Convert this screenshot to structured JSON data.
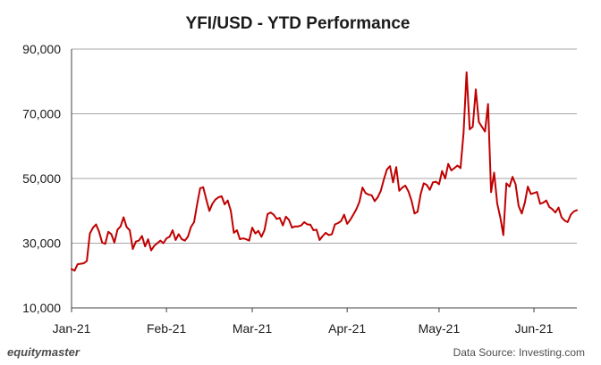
{
  "chart_data": {
    "type": "line",
    "title": "YFI/USD  - YTD Performance",
    "xlabel": "",
    "ylabel": "",
    "ylim": [
      10000,
      90000
    ],
    "y_ticks": [
      10000,
      30000,
      50000,
      70000,
      90000
    ],
    "y_tick_labels": [
      "10,000",
      "30,000",
      "50,000",
      "70,000",
      "90,000"
    ],
    "x_range": [
      "2021-01-01",
      "2021-06-15"
    ],
    "x_ticks": [
      {
        "date": "2021-01-01",
        "label": "Jan-21"
      },
      {
        "date": "2021-02-01",
        "label": "Feb-21"
      },
      {
        "date": "2021-03-01",
        "label": "Mar-21"
      },
      {
        "date": "2021-04-01",
        "label": "Apr-21"
      },
      {
        "date": "2021-05-01",
        "label": "May-21"
      },
      {
        "date": "2021-06-01",
        "label": "Jun-21"
      }
    ],
    "grid": true,
    "line_color": "#c00000",
    "series": [
      {
        "name": "",
        "x": [
          "2021-01-01",
          "2021-01-02",
          "2021-01-03",
          "2021-01-05",
          "2021-01-06",
          "2021-01-07",
          "2021-01-08",
          "2021-01-09",
          "2021-01-10",
          "2021-01-11",
          "2021-01-12",
          "2021-01-13",
          "2021-01-14",
          "2021-01-15",
          "2021-01-16",
          "2021-01-17",
          "2021-01-18",
          "2021-01-19",
          "2021-01-20",
          "2021-01-21",
          "2021-01-22",
          "2021-01-23",
          "2021-01-24",
          "2021-01-25",
          "2021-01-26",
          "2021-01-27",
          "2021-01-28",
          "2021-01-29",
          "2021-01-30",
          "2021-01-31",
          "2021-02-01",
          "2021-02-02",
          "2021-02-03",
          "2021-02-04",
          "2021-02-05",
          "2021-02-06",
          "2021-02-07",
          "2021-02-08",
          "2021-02-09",
          "2021-02-10",
          "2021-02-11",
          "2021-02-12",
          "2021-02-13",
          "2021-02-14",
          "2021-02-15",
          "2021-02-16",
          "2021-02-17",
          "2021-02-18",
          "2021-02-19",
          "2021-02-20",
          "2021-02-21",
          "2021-02-22",
          "2021-02-23",
          "2021-02-24",
          "2021-02-25",
          "2021-02-26",
          "2021-02-27",
          "2021-02-28",
          "2021-03-01",
          "2021-03-02",
          "2021-03-03",
          "2021-03-04",
          "2021-03-05",
          "2021-03-06",
          "2021-03-07",
          "2021-03-08",
          "2021-03-09",
          "2021-03-10",
          "2021-03-11",
          "2021-03-12",
          "2021-03-13",
          "2021-03-14",
          "2021-03-15",
          "2021-03-16",
          "2021-03-17",
          "2021-03-18",
          "2021-03-19",
          "2021-03-20",
          "2021-03-21",
          "2021-03-22",
          "2021-03-23",
          "2021-03-24",
          "2021-03-25",
          "2021-03-26",
          "2021-03-27",
          "2021-03-28",
          "2021-03-29",
          "2021-03-30",
          "2021-03-31",
          "2021-04-01",
          "2021-04-02",
          "2021-04-03",
          "2021-04-04",
          "2021-04-05",
          "2021-04-06",
          "2021-04-07",
          "2021-04-08",
          "2021-04-09",
          "2021-04-10",
          "2021-04-11",
          "2021-04-12",
          "2021-04-13",
          "2021-04-14",
          "2021-04-15",
          "2021-04-16",
          "2021-04-17",
          "2021-04-18",
          "2021-04-19",
          "2021-04-20",
          "2021-04-21",
          "2021-04-22",
          "2021-04-23",
          "2021-04-24",
          "2021-04-25",
          "2021-04-26",
          "2021-04-27",
          "2021-04-28",
          "2021-04-29",
          "2021-04-30",
          "2021-05-01",
          "2021-05-02",
          "2021-05-03",
          "2021-05-04",
          "2021-05-05",
          "2021-05-06",
          "2021-05-07",
          "2021-05-08",
          "2021-05-09",
          "2021-05-10",
          "2021-05-11",
          "2021-05-12",
          "2021-05-13",
          "2021-05-14",
          "2021-05-15",
          "2021-05-16",
          "2021-05-17",
          "2021-05-18",
          "2021-05-19",
          "2021-05-20",
          "2021-05-21",
          "2021-05-22",
          "2021-05-23",
          "2021-05-24",
          "2021-05-25",
          "2021-05-26",
          "2021-05-27",
          "2021-05-28",
          "2021-05-29",
          "2021-05-30",
          "2021-05-31",
          "2021-06-01",
          "2021-06-02",
          "2021-06-03",
          "2021-06-04",
          "2021-06-05",
          "2021-06-06",
          "2021-06-07",
          "2021-06-08",
          "2021-06-09",
          "2021-06-10",
          "2021-06-11",
          "2021-06-12",
          "2021-06-13",
          "2021-06-14",
          "2021-06-15"
        ],
        "values": [
          22000,
          21500,
          23500,
          23800,
          24500,
          33000,
          34800,
          35800,
          33500,
          30200,
          29800,
          33500,
          32800,
          30200,
          34200,
          35200,
          38000,
          35000,
          34000,
          28200,
          30500,
          30800,
          32200,
          29000,
          31200,
          27800,
          29200,
          30000,
          30800,
          30000,
          31500,
          32000,
          34000,
          31000,
          32800,
          31200,
          30800,
          32000,
          35000,
          36500,
          42000,
          47000,
          47300,
          43500,
          40000,
          42200,
          43500,
          44200,
          44500,
          42000,
          43200,
          40000,
          33200,
          34000,
          31200,
          31500,
          31200,
          30800,
          34800,
          33000,
          33800,
          32000,
          34000,
          39000,
          39500,
          38800,
          37500,
          37800,
          35500,
          38200,
          37200,
          34800,
          35200,
          35200,
          35500,
          36500,
          35800,
          35700,
          34000,
          34200,
          31000,
          32200,
          33200,
          32500,
          32800,
          35800,
          36200,
          36800,
          38800,
          36000,
          37200,
          38800,
          40500,
          42800,
          47200,
          45500,
          45000,
          44800,
          43000,
          44200,
          46200,
          49800,
          52800,
          53800,
          48800,
          53500,
          46200,
          47200,
          47800,
          46000,
          43200,
          39200,
          39700,
          45200,
          48500,
          48000,
          46500,
          48800,
          49000,
          48200,
          52300,
          50000,
          54500,
          52500,
          53200,
          54000,
          53200,
          64000,
          82800,
          65200,
          66000,
          77500,
          67500,
          66000,
          64500,
          73000,
          45800,
          51800,
          42200,
          38000,
          32500,
          48500,
          47500,
          50500,
          48200,
          41500,
          39200,
          42500,
          47500,
          45200,
          45500,
          45800,
          42200,
          42500,
          43200,
          41200,
          40500,
          39500,
          41000,
          38000,
          37000,
          36500,
          38800,
          39800,
          40200
        ]
      }
    ]
  },
  "footer": {
    "brand": "equitymaster",
    "source": "Data Source: Investing.com"
  }
}
